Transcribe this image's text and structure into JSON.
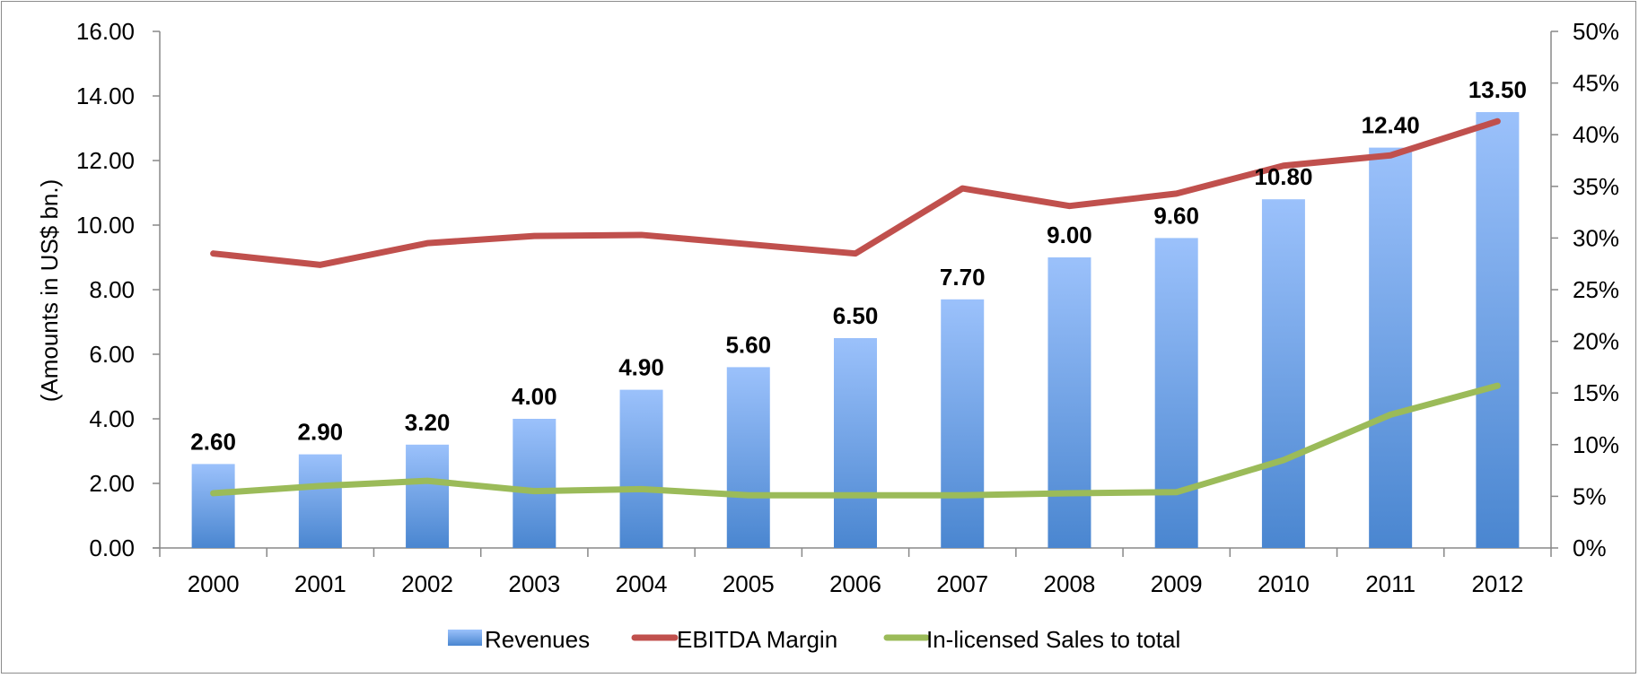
{
  "chart_data": {
    "type": "bar",
    "title": "",
    "categories": [
      "2000",
      "2001",
      "2002",
      "2003",
      "2004",
      "2005",
      "2006",
      "2007",
      "2008",
      "2009",
      "2010",
      "2011",
      "2012"
    ],
    "series": [
      {
        "name": "Revenues",
        "type": "bar",
        "axis": "left",
        "color": "#4a86d0",
        "color_top": "#9bc1fb",
        "values": [
          2.6,
          2.9,
          3.2,
          4.0,
          4.9,
          5.6,
          6.5,
          7.7,
          9.0,
          9.6,
          10.8,
          12.4,
          13.5
        ],
        "data_labels": [
          "2.60",
          "2.90",
          "3.20",
          "4.00",
          "4.90",
          "5.60",
          "6.50",
          "7.70",
          "9.00",
          "9.60",
          "10.80",
          "12.40",
          "13.50"
        ]
      },
      {
        "name": "EBITDA Margin",
        "type": "line",
        "axis": "right",
        "color": "#c0504d",
        "values": [
          28.5,
          27.4,
          29.5,
          30.2,
          30.3,
          29.4,
          28.5,
          34.8,
          33.1,
          34.3,
          37.0,
          38.0,
          41.3
        ]
      },
      {
        "name": "In-licensed Sales to total",
        "type": "line",
        "axis": "right",
        "color": "#9bbb59",
        "values": [
          5.3,
          6.0,
          6.5,
          5.5,
          5.7,
          5.1,
          5.1,
          5.1,
          5.3,
          5.4,
          8.5,
          12.9,
          15.7
        ]
      }
    ],
    "xlabel": "",
    "ylabel": "(Amounts in US$ bn.)",
    "ylim": [
      0,
      16
    ],
    "yticks": [
      "0.00",
      "2.00",
      "4.00",
      "6.00",
      "8.00",
      "10.00",
      "12.00",
      "14.00",
      "16.00"
    ],
    "y2label": "",
    "y2lim": [
      0,
      50
    ],
    "y2ticks": [
      "0%",
      "5%",
      "10%",
      "15%",
      "20%",
      "25%",
      "30%",
      "35%",
      "40%",
      "45%",
      "50%"
    ],
    "grid": false,
    "legend": {
      "position": "bottom",
      "entries": [
        "Revenues",
        "EBITDA Margin",
        "In-licensed Sales to total"
      ]
    }
  }
}
